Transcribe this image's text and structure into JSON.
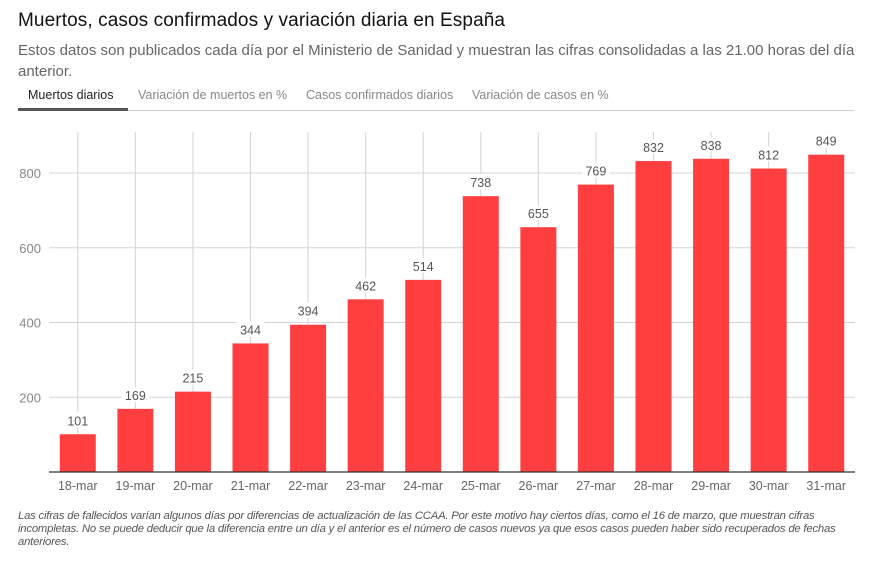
{
  "header": {
    "title": "Muertos, casos confirmados y variación diaria en España",
    "subtitle": "Estos datos son publicados cada día por el Ministerio de Sanidad y muestran las cifras consolidadas a las 21.00 horas del día anterior."
  },
  "tabs": [
    {
      "label": "Muertos diarios",
      "active": true
    },
    {
      "label": "Variación de muertos en %",
      "active": false
    },
    {
      "label": "Casos confirmados diarios",
      "active": false
    },
    {
      "label": "Variación de casos en %",
      "active": false
    }
  ],
  "colors": {
    "bar": "#ff3e3f",
    "grid": "#d4d4d4",
    "axis": "#333333",
    "tick_text": "#888888",
    "label_text": "#555555"
  },
  "chart_data": {
    "type": "bar",
    "title": "Muertos diarios",
    "xlabel": "",
    "ylabel": "",
    "categories": [
      "18-mar",
      "19-mar",
      "20-mar",
      "21-mar",
      "22-mar",
      "23-mar",
      "24-mar",
      "25-mar",
      "26-mar",
      "27-mar",
      "28-mar",
      "29-mar",
      "30-mar",
      "31-mar"
    ],
    "values": [
      101,
      169,
      215,
      344,
      394,
      462,
      514,
      738,
      655,
      769,
      832,
      838,
      812,
      849
    ],
    "yticks": [
      200,
      400,
      600,
      800
    ],
    "ylim": [
      0,
      910
    ],
    "grid": true,
    "data_labels": true
  },
  "footnote": "Las cifras de fallecidos varían algunos días por diferencias de actualización de las CCAA. Por este motivo hay ciertos días, como el 16 de marzo, que muestran cifras incompletas. No se puede deducir que la diferencia entre un día y el anterior es el número de casos nuevos ya que esos casos pueden haber sido recuperados de fechas anteriores."
}
